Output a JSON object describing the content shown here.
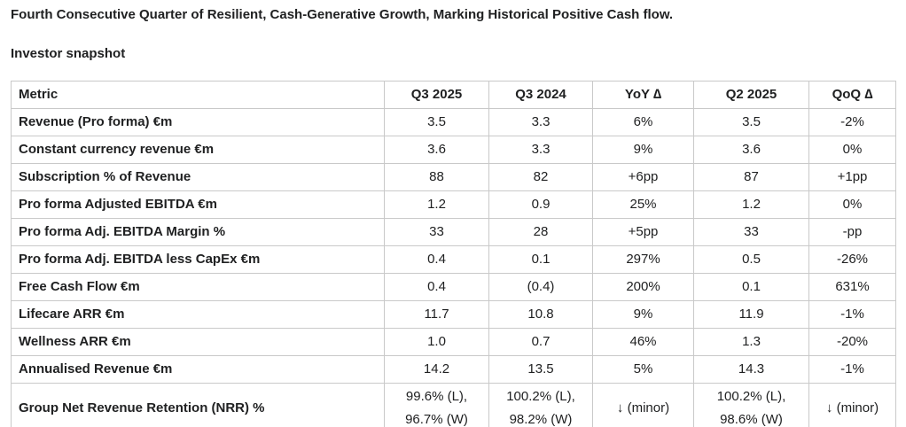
{
  "page": {
    "title": "Fourth Consecutive Quarter of Resilient, Cash-Generative Growth, Marking Historical Positive Cash flow.",
    "subtitle": "Investor snapshot"
  },
  "colors": {
    "text": "#202122",
    "border": "#c9c9c9",
    "background": "#ffffff"
  },
  "table": {
    "columns": [
      "Metric",
      "Q3 2025",
      "Q3 2024",
      "YoY ∆",
      "Q2 2025",
      "QoQ ∆"
    ],
    "rows": [
      {
        "metric": "Revenue (Pro forma) €m",
        "values": [
          "3.5",
          "3.3",
          "6%",
          "3.5",
          "-2%"
        ]
      },
      {
        "metric": "Constant currency revenue €m",
        "values": [
          "3.6",
          "3.3",
          "9%",
          "3.6",
          "0%"
        ]
      },
      {
        "metric": "Subscription % of Revenue",
        "values": [
          "88",
          "82",
          "+6pp",
          "87",
          "+1pp"
        ]
      },
      {
        "metric": "Pro forma Adjusted EBITDA €m",
        "values": [
          "1.2",
          "0.9",
          "25%",
          "1.2",
          "0%"
        ]
      },
      {
        "metric": "Pro forma Adj. EBITDA Margin %",
        "values": [
          "33",
          "28",
          "+5pp",
          "33",
          "-pp"
        ]
      },
      {
        "metric": "Pro forma Adj. EBITDA less CapEx €m",
        "values": [
          "0.4",
          "0.1",
          "297%",
          "0.5",
          "-26%"
        ]
      },
      {
        "metric": "Free Cash Flow €m",
        "values": [
          "0.4",
          "(0.4)",
          "200%",
          "0.1",
          "631%"
        ]
      },
      {
        "metric": "Lifecare ARR €m",
        "values": [
          "11.7",
          "10.8",
          "9%",
          "11.9",
          "-1%"
        ]
      },
      {
        "metric": "Wellness ARR €m",
        "values": [
          "1.0",
          "0.7",
          "46%",
          "1.3",
          "-20%"
        ]
      },
      {
        "metric": "Annualised Revenue €m",
        "values": [
          "14.2",
          "13.5",
          "5%",
          "14.3",
          "-1%"
        ]
      },
      {
        "metric": "Group Net Revenue Retention (NRR) %",
        "values": [
          "99.6% (L),\n96.7% (W)",
          "100.2% (L),\n98.2% (W)",
          "↓ (minor)",
          "100.2% (L),\n98.6% (W)",
          "↓ (minor)"
        ]
      }
    ]
  }
}
